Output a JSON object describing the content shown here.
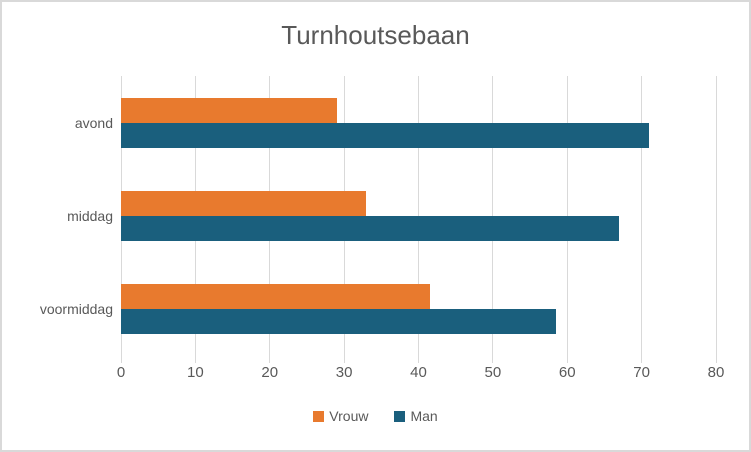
{
  "chart_data": {
    "type": "bar",
    "orientation": "horizontal",
    "title": "Turnhoutsebaan",
    "categories": [
      "avond",
      "middag",
      "voormiddag"
    ],
    "series": [
      {
        "name": "Vrouw",
        "color": "#E87A2E",
        "values": [
          29,
          33,
          41.5
        ]
      },
      {
        "name": "Man",
        "color": "#1A5F7D",
        "values": [
          71,
          67,
          58.5
        ]
      }
    ],
    "x_axis": {
      "min": 0,
      "max": 80,
      "step": 10,
      "tick_labels": [
        "0",
        "10",
        "20",
        "30",
        "40",
        "50",
        "60",
        "70",
        "80"
      ]
    },
    "xlabel": "",
    "ylabel": "",
    "grid": true,
    "legend_position": "bottom",
    "colors": {
      "text": "#595959",
      "gridline": "#D9D9D9",
      "border": "#D9D9D9",
      "background": "#FFFFFF"
    }
  }
}
